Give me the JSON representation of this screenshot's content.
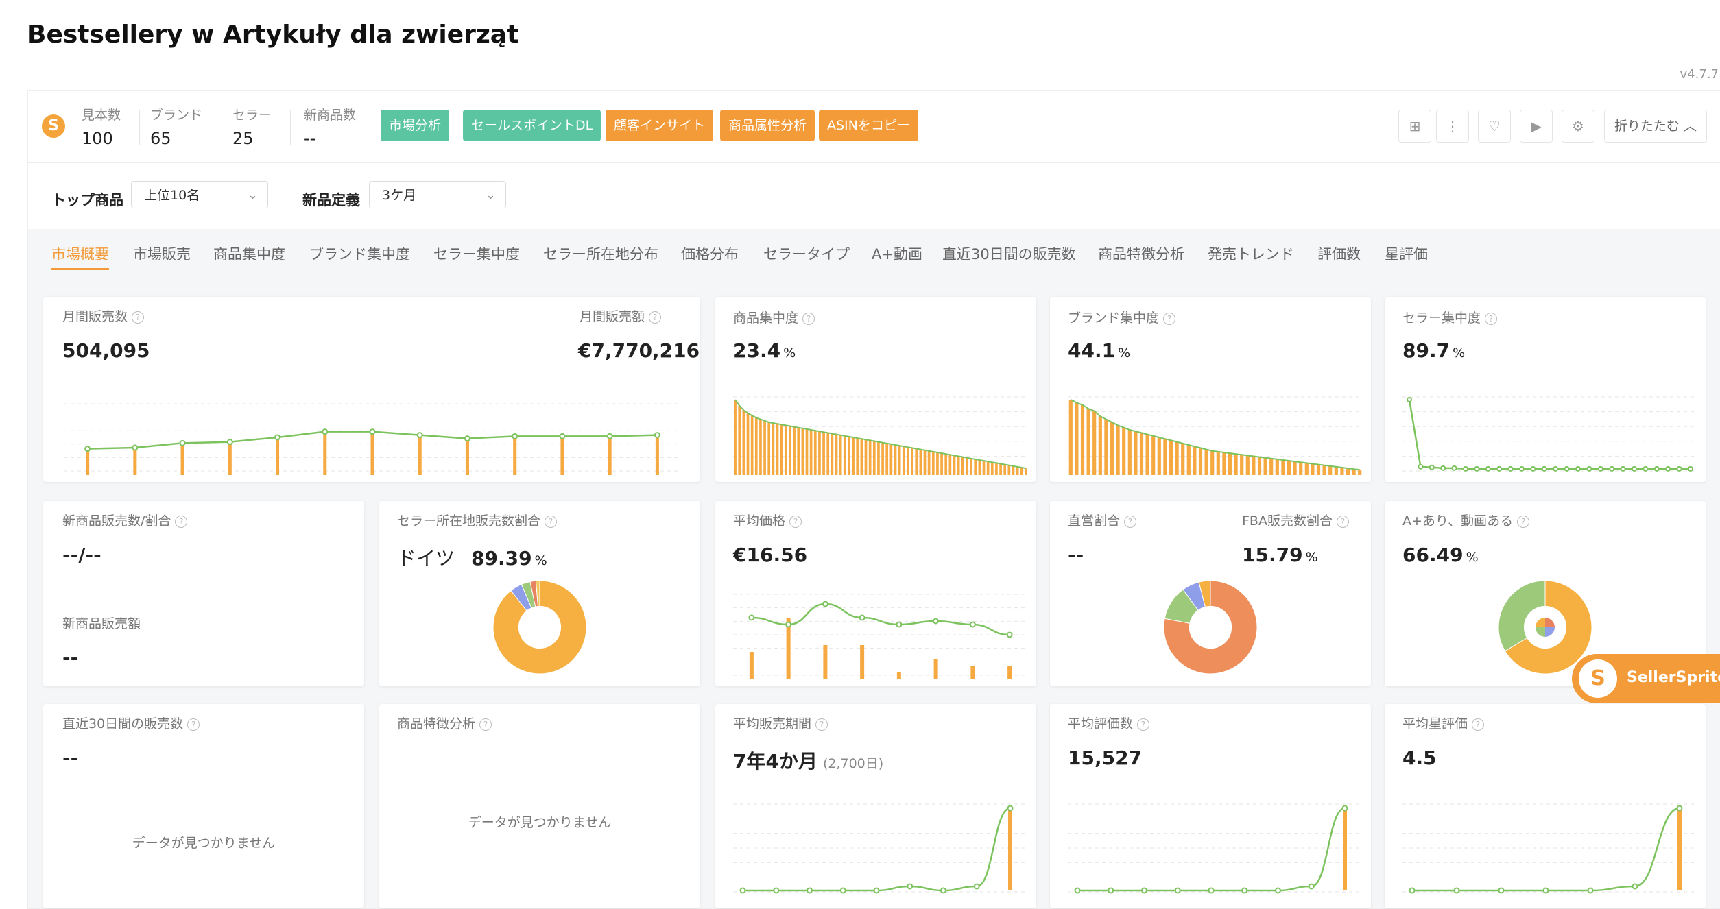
{
  "page": {
    "title": "Bestsellery w Artykuły dla zwierząt",
    "version": "v4.7.7"
  },
  "toolbar": {
    "stats": [
      {
        "label": "見本数",
        "value": "100"
      },
      {
        "label": "ブランド",
        "value": "65"
      },
      {
        "label": "セラー",
        "value": "25"
      },
      {
        "label": "新商品数",
        "value": "--"
      }
    ],
    "buttons": [
      {
        "label": "市場分析",
        "color": "#5bc4a0"
      },
      {
        "label": "セールスポイントDL",
        "color": "#5bc4a0"
      },
      {
        "label": "顧客インサイト",
        "color": "#f29b38"
      },
      {
        "label": "商品属性分析",
        "color": "#f29b38"
      },
      {
        "label": "ASINをコピー",
        "color": "#f29b38"
      }
    ],
    "icons": [
      "grid-icon",
      "more-icon",
      "heart-icon",
      "video-icon",
      "settings-icon"
    ],
    "collapse_label": "折りたたむ"
  },
  "filters": {
    "top_label": "トップ商品",
    "top_value": "上位10名",
    "new_label": "新品定義",
    "new_value": "3ケ月"
  },
  "tabs": [
    "市場概要",
    "市場販売",
    "商品集中度",
    "ブランド集中度",
    "セラー集中度",
    "セラー所在地分布",
    "価格分布",
    "セラータイプ",
    "A+動画",
    "直近30日間の販売数",
    "商品特徴分析",
    "発売トレンド",
    "評価数",
    "星評価"
  ],
  "cards": {
    "monthly": {
      "title1": "月間販売数",
      "value1": "504,095",
      "title2": "月間販売額",
      "value2": "€7,770,216"
    },
    "product_conc": {
      "title": "商品集中度",
      "value": "23.4",
      "unit": "%"
    },
    "brand_conc": {
      "title": "ブランド集中度",
      "value": "44.1",
      "unit": "%"
    },
    "seller_conc": {
      "title": "セラー集中度",
      "value": "89.7",
      "unit": "%"
    },
    "new_products": {
      "title": "新商品販売数/割合",
      "value": "--/--",
      "title2": "新商品販売額",
      "value2": "--"
    },
    "seller_location": {
      "title": "セラー所在地販売数割合",
      "country": "ドイツ",
      "value": "89.39",
      "unit": "%"
    },
    "avg_price": {
      "title": "平均価格",
      "value": "€16.56"
    },
    "direct": {
      "title1": "直営割合",
      "value1": "--",
      "title2": "FBA販売数割合",
      "value2": "15.79",
      "unit": "%"
    },
    "aplus": {
      "title": "A+あり、動画ある",
      "value": "66.49",
      "unit": "%"
    },
    "recent30": {
      "title": "直近30日間の販売数",
      "value": "--",
      "nodata": "データが見つかりません"
    },
    "features": {
      "title": "商品特徴分析",
      "nodata": "データが見つかりません"
    },
    "avg_period": {
      "title": "平均販売期間",
      "value": "7年4か月",
      "sub": "(2,700日)"
    },
    "avg_reviews": {
      "title": "平均評価数",
      "value": "15,527"
    },
    "avg_rating": {
      "title": "平均星評価",
      "value": "4.5"
    }
  },
  "brand_badge": {
    "label": "SellerSprite"
  },
  "chart_data": [
    {
      "id": "monthly",
      "type": "bar",
      "values": [
        23,
        24,
        28,
        29,
        33,
        38,
        38,
        35,
        32,
        34,
        34,
        34,
        35
      ],
      "ylim": [
        0,
        60
      ],
      "color": "#f5a940",
      "line_color": "#7cc35e"
    },
    {
      "id": "product_conc",
      "type": "bar",
      "values": [
        100,
        92,
        86,
        82,
        79,
        76,
        74,
        72,
        70,
        69,
        68,
        67,
        66,
        65,
        64,
        63,
        62,
        61,
        60,
        59,
        58,
        57,
        56,
        55,
        54,
        53,
        52,
        51,
        50,
        49,
        48,
        47,
        46,
        45,
        44,
        43,
        42,
        41,
        40,
        39,
        38,
        37,
        36,
        35,
        34,
        33,
        32,
        31,
        30,
        29,
        28,
        27,
        26,
        25,
        24,
        23,
        22,
        21,
        20,
        19,
        18,
        17,
        16,
        15,
        14,
        13,
        12,
        11,
        10,
        9
      ],
      "color": "#f5a940",
      "line_color": "#7cc35e"
    },
    {
      "id": "brand_conc",
      "type": "bar",
      "values": [
        100,
        96,
        93,
        88,
        85,
        78,
        74,
        70,
        66,
        63,
        60,
        58,
        56,
        54,
        52,
        50,
        48,
        46,
        44,
        42,
        40,
        38,
        36,
        34,
        32,
        31,
        30,
        29,
        28,
        27,
        26,
        25,
        24,
        23,
        22,
        21,
        20,
        19,
        18,
        17,
        16,
        15,
        14,
        13,
        12,
        11,
        10,
        9,
        8,
        7
      ],
      "color": "#f5a940",
      "line_color": "#7cc35e"
    },
    {
      "id": "seller_conc",
      "type": "line",
      "values": [
        100,
        6,
        5,
        4,
        4,
        3,
        3,
        3,
        3,
        3,
        3,
        3,
        3,
        3,
        3,
        3,
        3,
        3,
        3,
        3,
        3,
        3,
        3,
        3,
        3,
        3
      ],
      "color": "#7cc35e"
    },
    {
      "id": "seller_location",
      "type": "pie",
      "values": [
        89.39,
        4.2,
        3.1,
        2.0,
        1.31
      ],
      "colors": [
        "#f5b041",
        "#8e9ee8",
        "#9cc97a",
        "#e8835f",
        "#f0c95a"
      ]
    },
    {
      "id": "avg_price",
      "type": "bar",
      "values": [
        4,
        9,
        5,
        5,
        1,
        3,
        2,
        2
      ],
      "line": [
        9,
        8,
        11,
        9,
        8,
        8.5,
        8,
        6.5
      ],
      "color": "#f5a940",
      "line_color": "#7cc35e"
    },
    {
      "id": "direct",
      "type": "pie",
      "values": [
        78,
        12,
        6,
        4
      ],
      "colors": [
        "#ee8e5a",
        "#9cc97a",
        "#8e9ee8",
        "#f5b041"
      ]
    },
    {
      "id": "aplus",
      "type": "pie",
      "values": [
        66.49,
        33.51
      ],
      "colors": [
        "#f5b041",
        "#9cc97a"
      ]
    },
    {
      "id": "avg_period",
      "type": "bar",
      "values": [
        0,
        0,
        0,
        0,
        0,
        1,
        0,
        1,
        20
      ],
      "line_color": "#7cc35e",
      "color": "#f5a940"
    },
    {
      "id": "avg_reviews",
      "type": "bar",
      "values": [
        0,
        0,
        0,
        0,
        0,
        0,
        0,
        1,
        20
      ],
      "line_color": "#7cc35e",
      "color": "#f5a940"
    },
    {
      "id": "avg_rating",
      "type": "bar",
      "values": [
        0,
        0,
        0,
        0,
        0,
        1,
        20
      ],
      "line_color": "#7cc35e",
      "color": "#f5a940"
    }
  ]
}
